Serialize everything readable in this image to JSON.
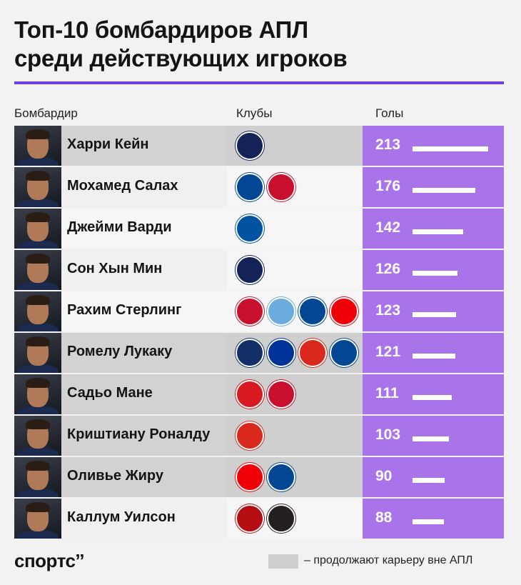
{
  "title_line1": "Топ-10 бомбардиров АПЛ",
  "title_line2": "среди действующих игроков",
  "columns": {
    "player": "Бомбардир",
    "clubs": "Клубы",
    "goals": "Голы"
  },
  "colors": {
    "accent": "#6d3fe0",
    "goals_bg": "#a974ea",
    "out_of_epl_bg": "#cfcfcf"
  },
  "chart_data": {
    "type": "bar",
    "orientation": "horizontal",
    "categories": [
      "Харри Кейн",
      "Мохамед Салах",
      "Джейми Варди",
      "Сон Хын Мин",
      "Рахим Стерлинг",
      "Ромелу Лукаку",
      "Садьо Мане",
      "Криштиану Роналду",
      "Оливье Жиру",
      "Каллум Уилсон"
    ],
    "values": [
      213,
      176,
      142,
      126,
      123,
      121,
      111,
      103,
      90,
      88
    ],
    "xlim": [
      0,
      213
    ]
  },
  "rows": [
    {
      "name": "Харри Кейн",
      "goals": 213,
      "out_of_epl": true,
      "clubs": [
        {
          "icon": "tottenham-crest",
          "color": "#132257"
        }
      ]
    },
    {
      "name": "Мохамед Салах",
      "goals": 176,
      "out_of_epl": false,
      "clubs": [
        {
          "icon": "chelsea-crest",
          "color": "#034694"
        },
        {
          "icon": "liverpool-crest",
          "color": "#c8102e"
        }
      ]
    },
    {
      "name": "Джейми Варди",
      "goals": 142,
      "out_of_epl": false,
      "clubs": [
        {
          "icon": "leicester-crest",
          "color": "#0053a0"
        }
      ]
    },
    {
      "name": "Сон Хын Мин",
      "goals": 126,
      "out_of_epl": false,
      "clubs": [
        {
          "icon": "tottenham-crest",
          "color": "#132257"
        }
      ]
    },
    {
      "name": "Рахим Стерлинг",
      "goals": 123,
      "out_of_epl": false,
      "clubs": [
        {
          "icon": "liverpool-crest",
          "color": "#c8102e"
        },
        {
          "icon": "manchester-city-crest",
          "color": "#6cabdd"
        },
        {
          "icon": "chelsea-crest",
          "color": "#034694"
        },
        {
          "icon": "arsenal-crest",
          "color": "#ef0107"
        }
      ]
    },
    {
      "name": "Ромелу Лукаку",
      "goals": 121,
      "out_of_epl": true,
      "clubs": [
        {
          "icon": "west-brom-crest",
          "color": "#122f67"
        },
        {
          "icon": "everton-crest",
          "color": "#003399"
        },
        {
          "icon": "manchester-united-crest",
          "color": "#da291c"
        },
        {
          "icon": "chelsea-crest",
          "color": "#034694"
        }
      ]
    },
    {
      "name": "Садьо Мане",
      "goals": 111,
      "out_of_epl": true,
      "clubs": [
        {
          "icon": "southampton-crest",
          "color": "#d71920"
        },
        {
          "icon": "liverpool-crest",
          "color": "#c8102e"
        }
      ]
    },
    {
      "name": "Криштиану Роналду",
      "goals": 103,
      "out_of_epl": true,
      "clubs": [
        {
          "icon": "manchester-united-crest",
          "color": "#da291c"
        }
      ]
    },
    {
      "name": "Оливье Жиру",
      "goals": 90,
      "out_of_epl": true,
      "clubs": [
        {
          "icon": "arsenal-crest",
          "color": "#ef0107"
        },
        {
          "icon": "chelsea-crest",
          "color": "#034694"
        }
      ]
    },
    {
      "name": "Каллум Уилсон",
      "goals": 88,
      "out_of_epl": false,
      "clubs": [
        {
          "icon": "bournemouth-crest",
          "color": "#b50e12"
        },
        {
          "icon": "newcastle-crest",
          "color": "#241f20"
        }
      ]
    }
  ],
  "footer": {
    "logo": "спортс’’",
    "legend_text": "– продолжают карьеру вне АПЛ"
  }
}
